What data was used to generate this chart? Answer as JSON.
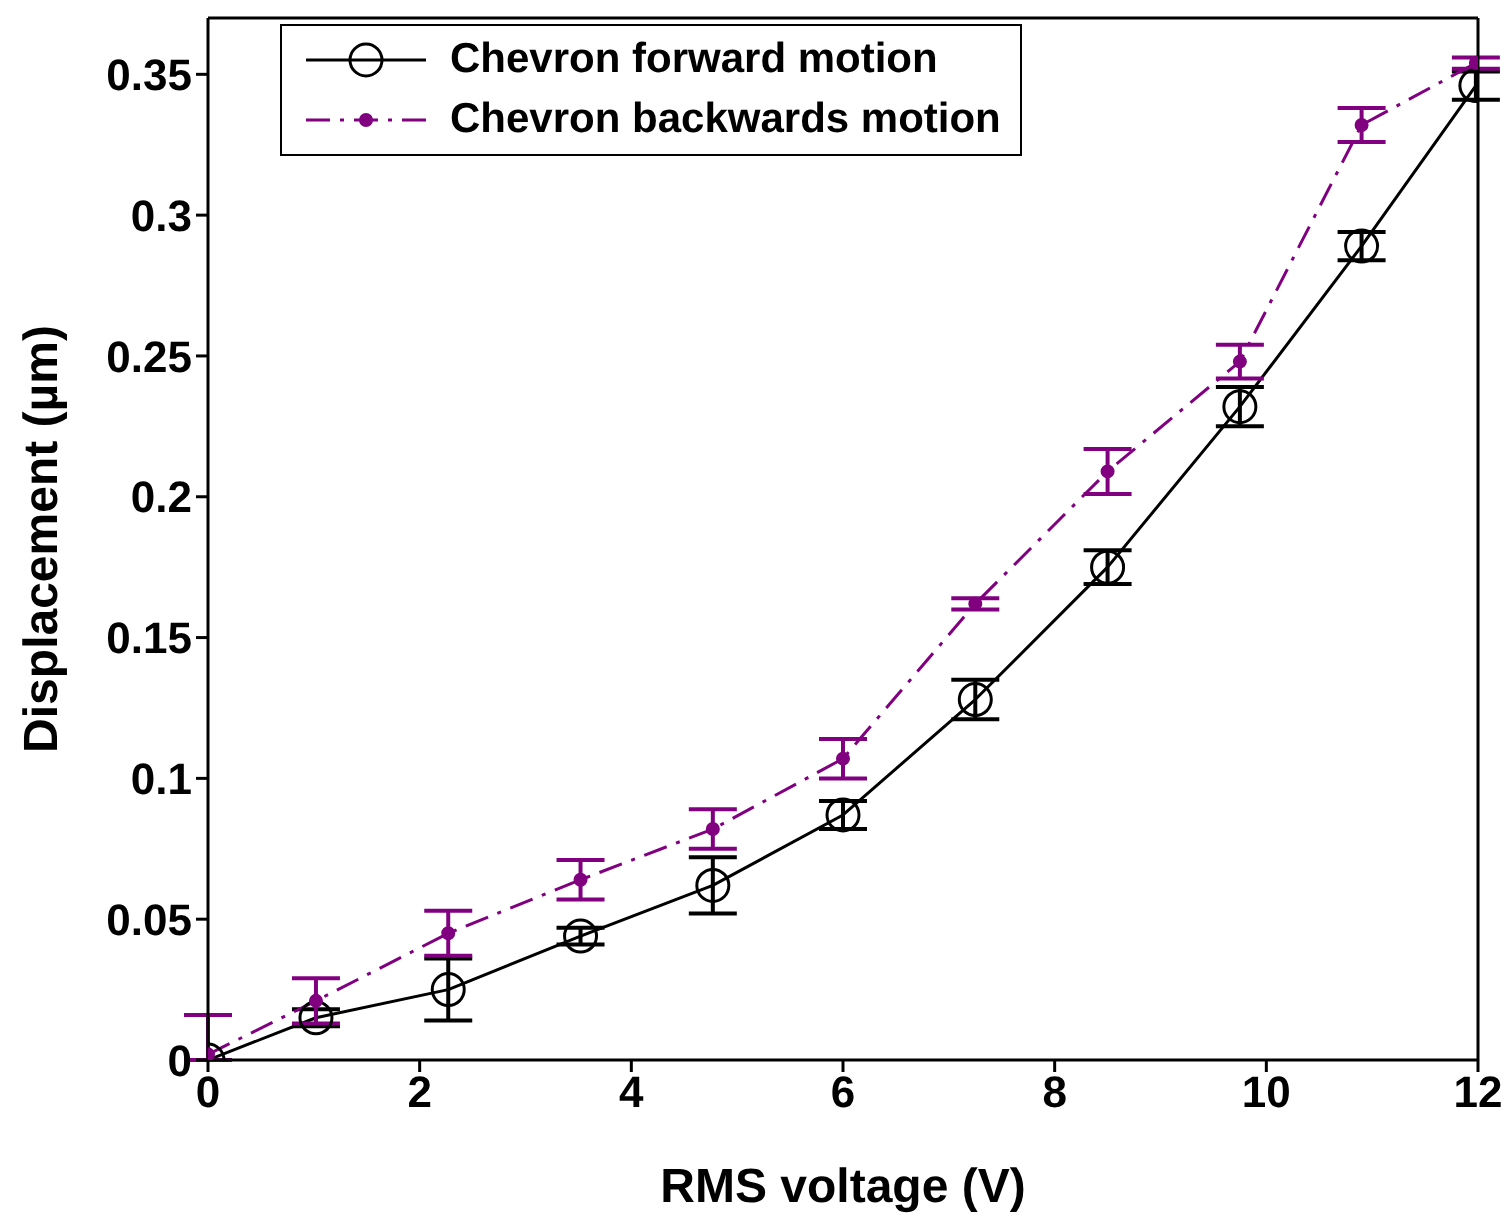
{
  "chart_data": {
    "type": "line",
    "xlabel": "RMS voltage (V)",
    "ylabel": "Displacement (µm)",
    "xlim": [
      0,
      12
    ],
    "xticks": [
      0,
      2,
      4,
      6,
      8,
      10,
      12
    ],
    "ylim": [
      0,
      0.37
    ],
    "yticks": [
      0,
      0.05,
      0.1,
      0.15,
      0.2,
      0.25,
      0.3,
      0.35
    ],
    "grid": false,
    "legend": "top left",
    "series": [
      {
        "name": "Chevron forward motion",
        "color": "#000000",
        "marker": "circle",
        "line_style": "solid",
        "x": [
          0,
          1.02,
          2.27,
          3.52,
          4.77,
          6.0,
          7.25,
          8.5,
          9.75,
          10.9,
          11.98
        ],
        "values": [
          0,
          0.015,
          0.025,
          0.044,
          0.062,
          0.087,
          0.128,
          0.175,
          0.232,
          0.289,
          0.346
        ],
        "errors": [
          null,
          0.003,
          0.011,
          0.003,
          0.01,
          0.005,
          0.007,
          0.006,
          0.007,
          0.005,
          0.005
        ]
      },
      {
        "name": "Chevron backwards motion",
        "color": "#800080",
        "marker": "circle",
        "line_style": "dashdot",
        "x": [
          0,
          1.02,
          2.27,
          3.52,
          4.77,
          6.0,
          7.25,
          8.5,
          9.75,
          10.9,
          11.98
        ],
        "values": [
          0.002,
          0.021,
          0.045,
          0.064,
          0.082,
          0.107,
          0.162,
          0.209,
          0.248,
          0.332,
          0.354
        ],
        "errors": [
          [
            0,
            0.016
          ],
          0.008,
          0.008,
          0.007,
          0.007,
          0.007,
          0.002,
          0.008,
          0.006,
          0.006,
          0.002
        ]
      }
    ]
  }
}
